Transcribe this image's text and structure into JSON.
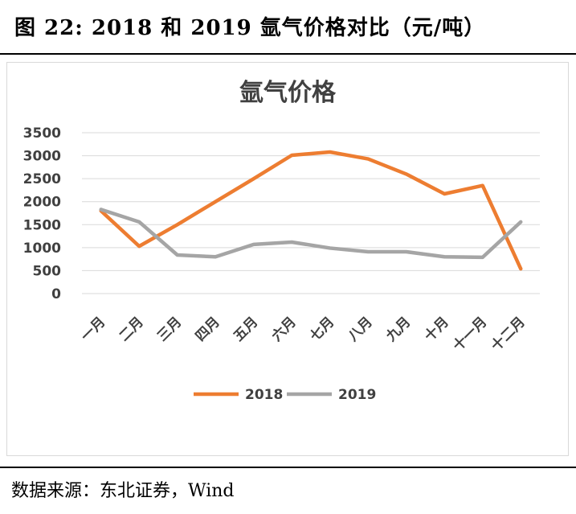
{
  "figure_title": "图 22: 2018 和 2019 氩气价格对比（元/吨）",
  "source": "数据来源：东北证券，Wind",
  "colors": {
    "series_2018": "#ED7D31",
    "series_2019": "#A5A5A5",
    "grid": "#D9D9D9",
    "axis_text": "#404040"
  },
  "chart_data": {
    "type": "line",
    "title": "氩气价格",
    "categories": [
      "一月",
      "二月",
      "三月",
      "四月",
      "五月",
      "六月",
      "七月",
      "八月",
      "九月",
      "十月",
      "十一月",
      "十二月"
    ],
    "series": [
      {
        "name": "2018",
        "values": [
          1800,
          1030,
          1500,
          2000,
          2500,
          3010,
          3080,
          2930,
          2600,
          2170,
          2350,
          540
        ]
      },
      {
        "name": "2019",
        "values": [
          1830,
          1560,
          840,
          800,
          1070,
          1120,
          990,
          910,
          910,
          800,
          790,
          1560
        ]
      }
    ],
    "yticks": [
      0,
      500,
      1000,
      1500,
      2000,
      2500,
      3000,
      3500
    ],
    "ylim": [
      0,
      3500
    ],
    "grid": true,
    "legend": "bottom"
  }
}
